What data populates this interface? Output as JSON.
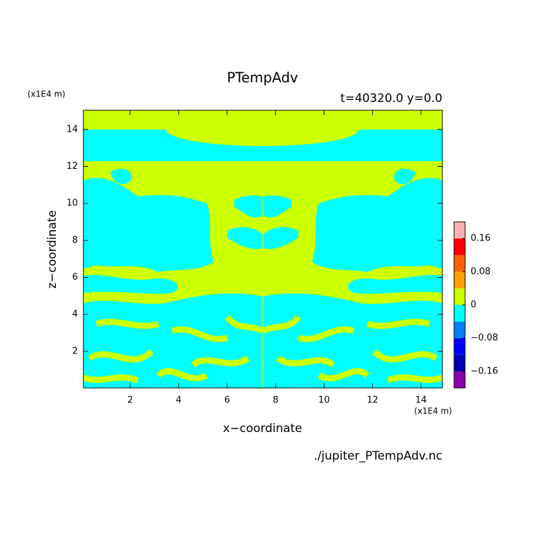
{
  "chart_data": {
    "type": "contour",
    "title": "PTempAdv",
    "subtitle": "t=40320.0 y=0.0",
    "x_label": "x−coordinate",
    "y_label": "z−coordinate",
    "x_unit": "(x1E4 m)",
    "y_unit": "(x1E4 m)",
    "source": "./jupiter_PTempAdv.nc",
    "xlim": [
      0.07,
      14.88
    ],
    "ylim": [
      0.02,
      15.04
    ],
    "xticks": [
      2,
      4,
      6,
      8,
      10,
      12,
      14
    ],
    "yticks": [
      2,
      4,
      6,
      8,
      10,
      12,
      14
    ],
    "colorbar": {
      "levels": [
        -0.2,
        -0.16,
        -0.12,
        -0.08,
        -0.04,
        0,
        0.04,
        0.08,
        0.12,
        0.16,
        0.2
      ],
      "colors": [
        "#8a00a8",
        "#0000b4",
        "#0000ff",
        "#0080ff",
        "#00ffff",
        "#ccff00",
        "#ffa000",
        "#ff6000",
        "#ff0000",
        "#ffb0b0"
      ],
      "ticks": [
        {
          "value": -0.16,
          "label": "−0.16"
        },
        {
          "value": -0.08,
          "label": "−0.08"
        },
        0,
        0.08,
        0.16
      ]
    }
  }
}
